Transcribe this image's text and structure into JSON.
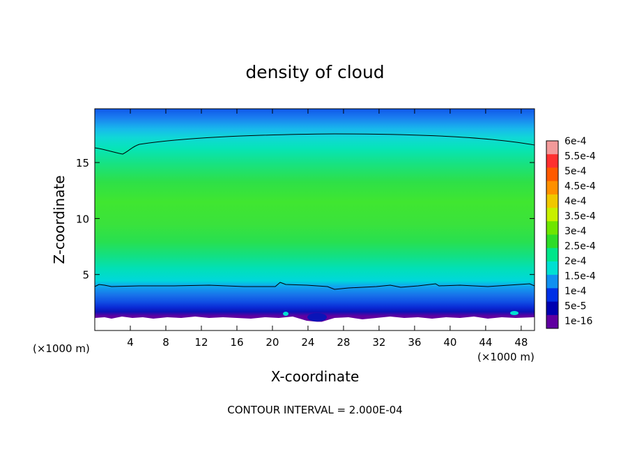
{
  "chart_data": {
    "type": "heatmap",
    "title": "density of cloud",
    "xlabel": "X-coordinate",
    "ylabel": "Z-coordinate",
    "x_unit": "(×1000 m)",
    "z_unit": "(×1000 m)",
    "xlim": [
      0,
      49.5
    ],
    "ylim": [
      0,
      19.8
    ],
    "x_ticks": [
      4,
      8,
      12,
      16,
      20,
      24,
      28,
      32,
      36,
      40,
      44,
      48
    ],
    "y_ticks": [
      5,
      10,
      15
    ],
    "footer": "CONTOUR INTERVAL = 2.000E-04",
    "colorbar": {
      "labels": [
        "6e-4",
        "5.5e-4",
        "5e-4",
        "4.5e-4",
        "4e-4",
        "3.5e-4",
        "3e-4",
        "2.5e-4",
        "2e-4",
        "1.5e-4",
        "1e-4",
        "5e-5",
        "1e-16"
      ],
      "colors": [
        "#f39a9a",
        "#ff3030",
        "#ff5a00",
        "#ff9000",
        "#f0c800",
        "#c8f000",
        "#6ee600",
        "#2edc28",
        "#00e68a",
        "#00e0d2",
        "#1090f0",
        "#0030e6",
        "#0000b0",
        "#6000a0"
      ]
    }
  }
}
